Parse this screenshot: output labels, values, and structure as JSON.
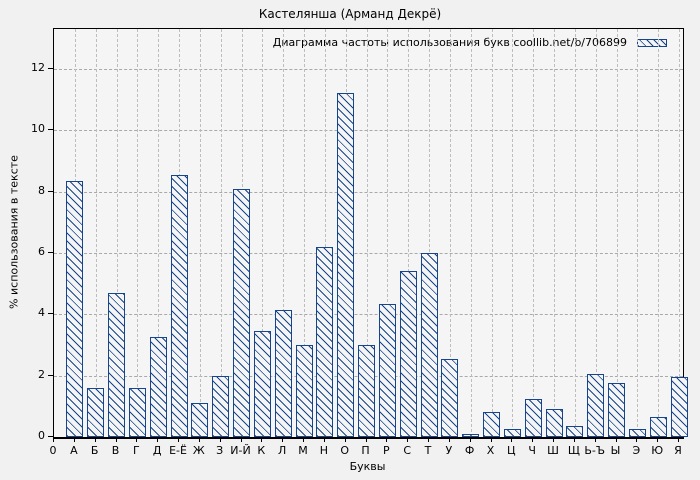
{
  "title": "Кастелянша (Арманд Декрё)",
  "legend": {
    "label": "Диаграмма частоты использования букв coollib.net/b/706899"
  },
  "axes": {
    "y_label": "% использования в тексте",
    "x_label": "Буквы"
  },
  "colors": {
    "bar_outline": "#16458c",
    "plot_background": "#f5f5f5",
    "figure_background": "#f1f1f1",
    "gridline": "#a9a9a9",
    "frame": "#000000"
  },
  "chart_data": {
    "type": "bar",
    "title": "Кастелянша (Арманд Декрё)",
    "legend_entry": "Диаграмма частоты использования букв coollib.net/b/706899",
    "legend_position": "top-right-inside",
    "xlabel": "Буквы",
    "ylabel": "% использования в тексте",
    "grid": true,
    "hatch": "diagonal",
    "ylim": [
      0,
      13.3
    ],
    "yticks": [
      0,
      2,
      4,
      6,
      8,
      10,
      12
    ],
    "categories": [
      "0",
      "А",
      "Б",
      "В",
      "Г",
      "Д",
      "Е-Ё",
      "Ж",
      "З",
      "И-Й",
      "К",
      "Л",
      "М",
      "Н",
      "О",
      "П",
      "Р",
      "С",
      "Т",
      "У",
      "Ф",
      "Х",
      "Ц",
      "Ч",
      "Ш",
      "Щ",
      "Ь-Ъ",
      "Ы",
      "Э",
      "Ю",
      "Я"
    ],
    "values": [
      0,
      8.35,
      1.6,
      4.7,
      1.6,
      3.25,
      8.55,
      1.1,
      2.0,
      8.1,
      3.45,
      4.15,
      3.0,
      6.2,
      11.2,
      3.0,
      4.35,
      5.4,
      6.0,
      2.55,
      0.1,
      0.8,
      0.25,
      1.25,
      0.9,
      0.35,
      2.05,
      1.75,
      0.25,
      0.65,
      1.95
    ]
  }
}
